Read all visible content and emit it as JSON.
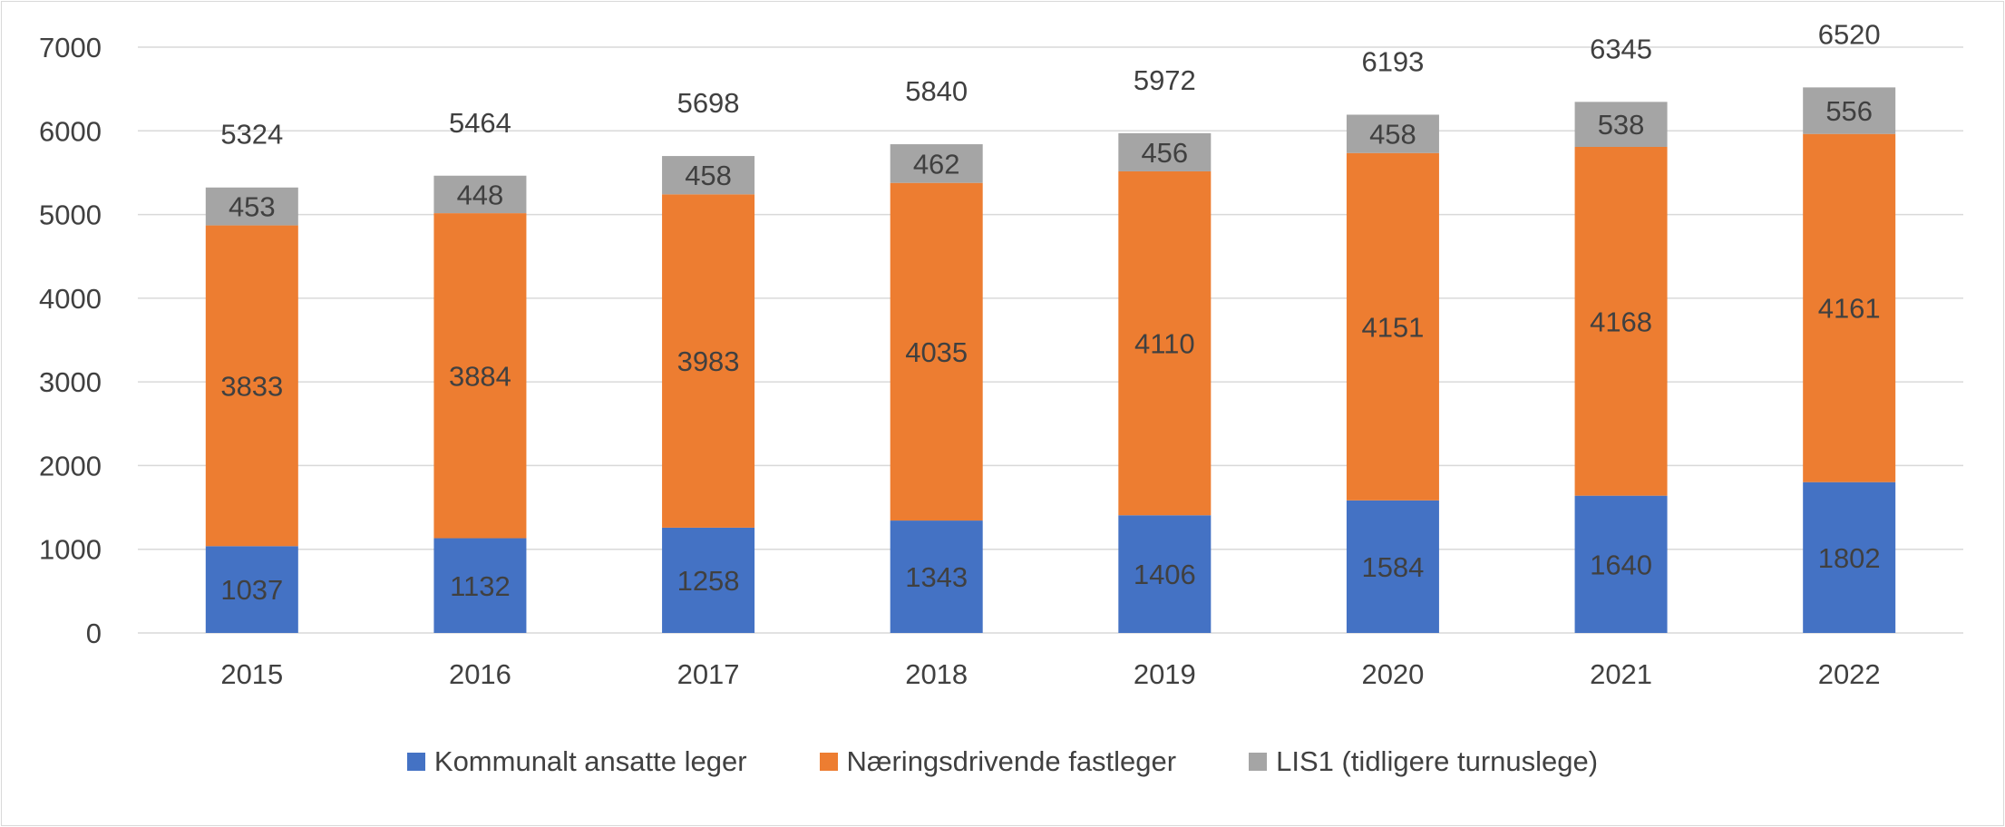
{
  "chart_data": {
    "type": "stacked-bar",
    "categories": [
      "2015",
      "2016",
      "2017",
      "2018",
      "2019",
      "2020",
      "2021",
      "2022"
    ],
    "series": [
      {
        "name": "Kommunalt ansatte leger",
        "color": "#4472C4",
        "values": [
          1037,
          1132,
          1258,
          1343,
          1406,
          1584,
          1640,
          1802
        ]
      },
      {
        "name": "Næringsdrivende fastleger",
        "color": "#ED7D31",
        "values": [
          3833,
          3884,
          3983,
          4035,
          4110,
          4151,
          4168,
          4161
        ]
      },
      {
        "name": "LIS1 (tidligere turnuslege)",
        "color": "#A5A5A5",
        "values": [
          453,
          448,
          458,
          462,
          456,
          458,
          538,
          556
        ]
      }
    ],
    "totals": [
      5324,
      5464,
      5698,
      5840,
      5972,
      6193,
      6345,
      6520
    ],
    "yticks": [
      "0",
      "1000",
      "2000",
      "3000",
      "4000",
      "5000",
      "6000",
      "7000"
    ],
    "ylim": [
      0,
      7000
    ],
    "grid": true,
    "legend": "bottom"
  }
}
